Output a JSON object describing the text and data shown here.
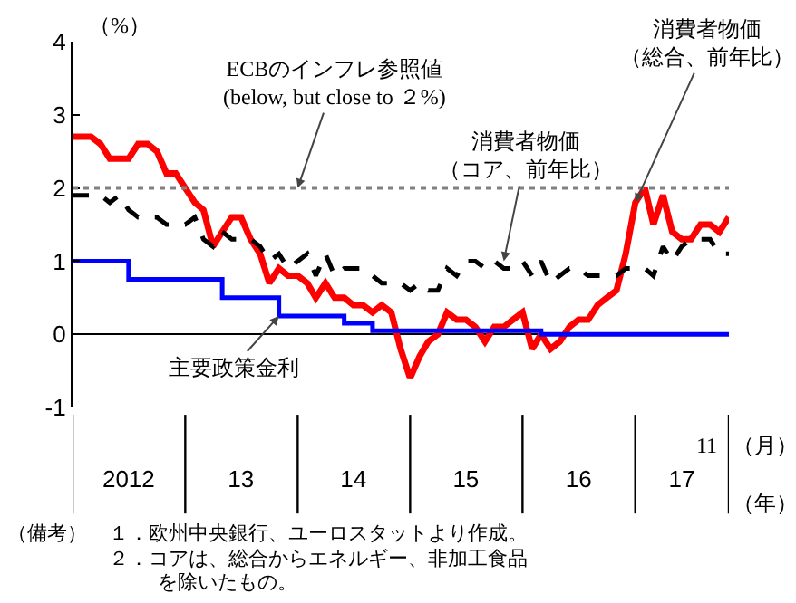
{
  "chart_data": {
    "type": "line",
    "ylabel": "（%）",
    "x": [
      "2012-01",
      "2012-02",
      "2012-03",
      "2012-04",
      "2012-05",
      "2012-06",
      "2012-07",
      "2012-08",
      "2012-09",
      "2012-10",
      "2012-11",
      "2012-12",
      "2013-01",
      "2013-02",
      "2013-03",
      "2013-04",
      "2013-05",
      "2013-06",
      "2013-07",
      "2013-08",
      "2013-09",
      "2013-10",
      "2013-11",
      "2013-12",
      "2014-01",
      "2014-02",
      "2014-03",
      "2014-04",
      "2014-05",
      "2014-06",
      "2014-07",
      "2014-08",
      "2014-09",
      "2014-10",
      "2014-11",
      "2014-12",
      "2015-01",
      "2015-02",
      "2015-03",
      "2015-04",
      "2015-05",
      "2015-06",
      "2015-07",
      "2015-08",
      "2015-09",
      "2015-10",
      "2015-11",
      "2015-12",
      "2016-01",
      "2016-02",
      "2016-03",
      "2016-04",
      "2016-05",
      "2016-06",
      "2016-07",
      "2016-08",
      "2016-09",
      "2016-10",
      "2016-11",
      "2016-12",
      "2017-01",
      "2017-02",
      "2017-03",
      "2017-04",
      "2017-05",
      "2017-06",
      "2017-07",
      "2017-08",
      "2017-09",
      "2017-10",
      "2017-11"
    ],
    "series": [
      {
        "color": "#ff0000",
        "line_style": "solid",
        "values": [
          2.7,
          2.7,
          2.7,
          2.6,
          2.4,
          2.4,
          2.4,
          2.6,
          2.6,
          2.5,
          2.2,
          2.2,
          2.0,
          1.8,
          1.7,
          1.2,
          1.4,
          1.6,
          1.6,
          1.3,
          1.1,
          0.7,
          0.9,
          0.8,
          0.8,
          0.7,
          0.5,
          0.7,
          0.5,
          0.5,
          0.4,
          0.4,
          0.3,
          0.4,
          0.3,
          -0.2,
          -0.6,
          -0.3,
          -0.1,
          0.0,
          0.3,
          0.2,
          0.2,
          0.1,
          -0.1,
          0.1,
          0.1,
          0.2,
          0.3,
          -0.2,
          0.0,
          -0.2,
          -0.1,
          0.1,
          0.2,
          0.2,
          0.4,
          0.5,
          0.6,
          1.1,
          1.8,
          2.0,
          1.5,
          1.9,
          1.4,
          1.3,
          1.3,
          1.5,
          1.5,
          1.4,
          1.6
        ]
      },
      {
        "color": "#000000",
        "line_style": "dashed",
        "values": [
          1.9,
          1.9,
          1.9,
          1.9,
          1.8,
          1.9,
          1.7,
          1.6,
          1.6,
          1.6,
          1.5,
          1.5,
          1.5,
          1.6,
          1.3,
          1.2,
          1.4,
          1.3,
          1.3,
          1.3,
          1.2,
          1.0,
          1.1,
          0.9,
          1.0,
          1.1,
          0.8,
          1.1,
          0.8,
          0.9,
          0.9,
          0.9,
          0.8,
          0.7,
          0.7,
          0.7,
          0.6,
          0.7,
          0.6,
          0.6,
          0.9,
          0.8,
          1.0,
          1.0,
          0.9,
          1.0,
          0.9,
          0.9,
          1.0,
          0.8,
          1.0,
          0.7,
          0.8,
          0.9,
          0.9,
          0.8,
          0.8,
          0.8,
          0.8,
          0.9,
          0.9,
          0.9,
          0.8,
          1.2,
          1.0,
          1.2,
          1.3,
          1.3,
          1.3,
          1.1,
          1.1
        ]
      },
      {
        "type": "step",
        "color": "#0000ff",
        "line_style": "solid",
        "values": [
          1.0,
          1.0,
          1.0,
          1.0,
          1.0,
          1.0,
          0.75,
          0.75,
          0.75,
          0.75,
          0.75,
          0.75,
          0.75,
          0.75,
          0.75,
          0.75,
          0.5,
          0.5,
          0.5,
          0.5,
          0.5,
          0.5,
          0.25,
          0.25,
          0.25,
          0.25,
          0.25,
          0.25,
          0.25,
          0.15,
          0.15,
          0.15,
          0.05,
          0.05,
          0.05,
          0.05,
          0.05,
          0.05,
          0.05,
          0.05,
          0.05,
          0.05,
          0.05,
          0.05,
          0.05,
          0.05,
          0.05,
          0.05,
          0.05,
          0.05,
          0,
          0,
          0,
          0,
          0,
          0,
          0,
          0,
          0,
          0,
          0,
          0,
          0,
          0,
          0,
          0,
          0,
          0,
          0,
          0,
          0
        ]
      }
    ],
    "xlim": [
      "2012-01",
      "2017-11"
    ],
    "xticks": [
      {
        "value": "2012-07",
        "label": "2012"
      },
      {
        "value": "2013-07",
        "label": "13"
      },
      {
        "value": "2014-07",
        "label": "14"
      },
      {
        "value": "2015-07",
        "label": "15"
      },
      {
        "value": "2016-07",
        "label": "16"
      },
      {
        "value": "2017-06",
        "label": "17"
      }
    ],
    "ylim": [
      -1,
      4
    ],
    "yticks": [
      -1,
      0,
      1,
      2,
      3,
      4
    ],
    "ref_lines": [
      {
        "axis": "y",
        "value": 2,
        "color": "#808080",
        "line_style": "dotted"
      }
    ],
    "grid": false,
    "annotations": [
      {
        "text": "ECBのインフレ参照値\n(below, but close to ２%)",
        "x": "2014-01",
        "y": 2
      },
      {
        "text": "消費者物価（コア、前年比）",
        "x": "2015-11",
        "y": 1.0
      },
      {
        "text": "消費者物価（総合、前年比）",
        "x": "2017-01",
        "y": 1.8
      },
      {
        "text": "主要政策金利",
        "x": "2013-11",
        "y": 0.25
      },
      "11",
      "（月）",
      "（年）",
      "（備考）",
      "１．欧州中央銀行、ユーロスタットより作成。",
      "２．コアは、総合からエネルギー、非加工食品",
      "を除いたもの。"
    ]
  }
}
